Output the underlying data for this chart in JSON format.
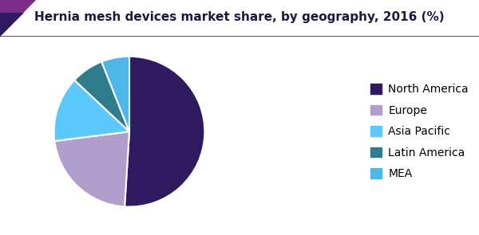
{
  "title": "Hernia mesh devices market share, by geography, 2016 (%)",
  "title_fontsize": 11,
  "labels": [
    "North America",
    "Europe",
    "Asia Pacific",
    "Latin America",
    "MEA"
  ],
  "values": [
    51,
    22,
    14,
    7,
    6
  ],
  "colors": [
    "#2e1a5e",
    "#b09fcc",
    "#5ac8fa",
    "#2e7d8c",
    "#4db8e8"
  ],
  "start_angle": 90,
  "background_color": "#ffffff",
  "header_bg": "#f5f5f5",
  "header_line_color": "#3333aa",
  "header_tri_color1": "#7b2d8b",
  "header_tri_color2": "#2e1a5e",
  "legend_fontsize": 10,
  "legend_labelspacing": 0.9
}
